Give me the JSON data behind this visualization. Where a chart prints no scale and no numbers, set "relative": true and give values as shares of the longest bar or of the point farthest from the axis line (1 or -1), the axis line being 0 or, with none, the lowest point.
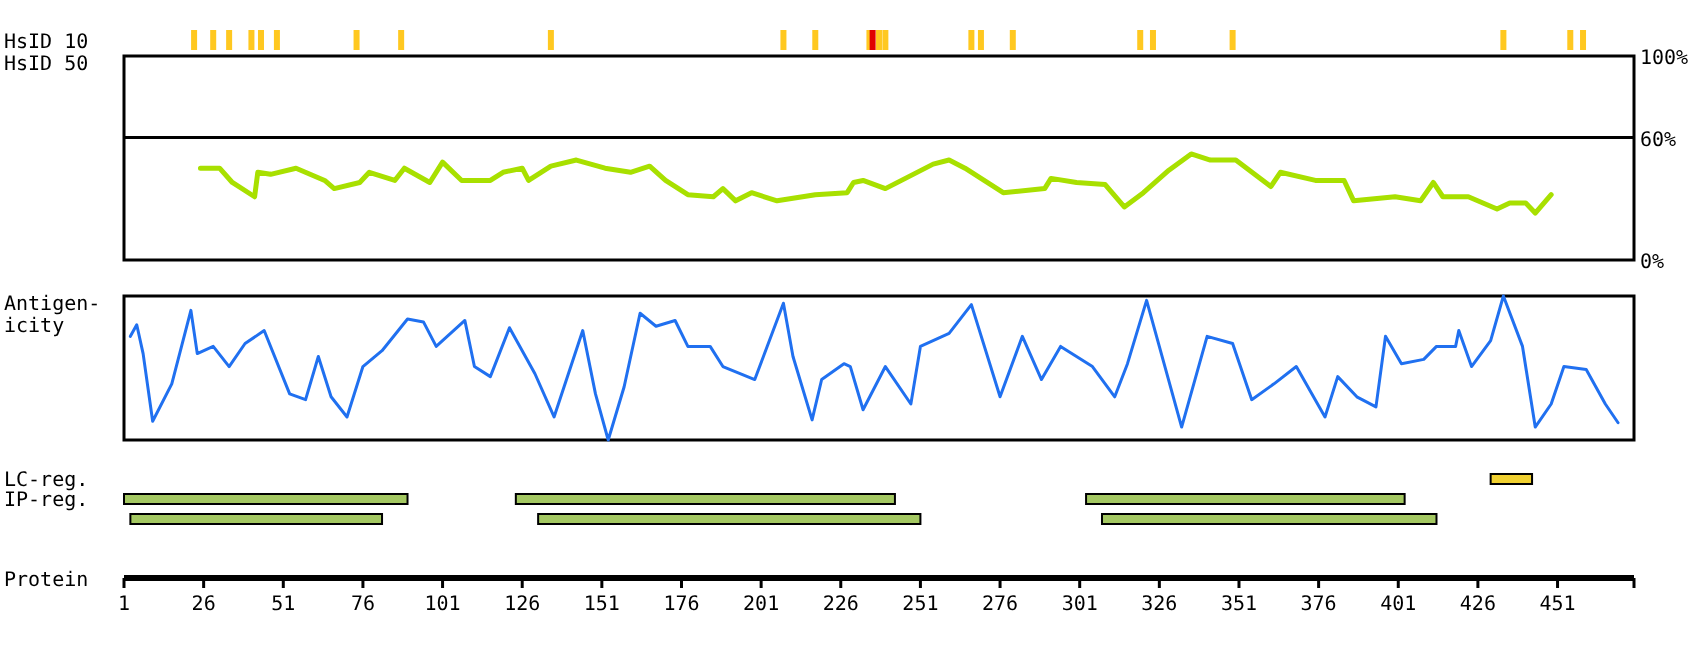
{
  "chart_data": [
    {
      "type": "bar",
      "ylabel": "HsID 10",
      "relative": true,
      "xlim": [
        1,
        475
      ],
      "tick_labels": false,
      "x": [
        23,
        29,
        34,
        41,
        44,
        49,
        74,
        88,
        135,
        208,
        218,
        235,
        236,
        238,
        240,
        267,
        270,
        280,
        320,
        324,
        349,
        434,
        455,
        459
      ],
      "values": [
        1,
        1,
        1,
        1,
        1,
        1,
        1,
        1,
        1,
        1,
        1,
        1,
        1,
        1,
        1,
        1,
        1,
        1,
        1,
        1,
        1,
        1,
        1,
        1
      ],
      "colors": [
        "#ffc820",
        "#ffc820",
        "#ffc820",
        "#ffc820",
        "#ffc820",
        "#ffc820",
        "#ffc820",
        "#ffc820",
        "#ffc820",
        "#ffc820",
        "#ffc820",
        "#ffc820",
        "#e00000",
        "#ffc820",
        "#ffc820",
        "#ffc820",
        "#ffc820",
        "#ffc820",
        "#ffc820",
        "#ffc820",
        "#ffc820",
        "#ffc820",
        "#ffc820",
        "#ffc820"
      ]
    },
    {
      "type": "line",
      "ylabel": "HsID 50",
      "xlim": [
        1,
        475
      ],
      "ylim": [
        0,
        100
      ],
      "tick_labels": "y",
      "yticks": [
        {
          "value": 0,
          "label": "0%"
        },
        {
          "value": 60,
          "label": "60%"
        },
        {
          "value": 100,
          "label": "100%"
        }
      ],
      "ref_lines": [
        {
          "axis": "y",
          "value": 60
        }
      ],
      "series": [
        {
          "color": "#a8e000",
          "x": [
            25,
            31,
            35,
            42,
            43,
            47,
            55,
            64,
            67,
            75,
            78,
            86,
            89,
            97,
            101,
            107,
            116,
            120,
            126,
            128,
            135,
            143,
            152,
            160,
            166,
            171,
            178,
            186,
            189,
            193,
            198,
            206,
            218,
            228,
            230,
            233,
            240,
            255,
            260,
            265,
            277,
            290,
            292,
            300,
            309,
            315,
            321,
            329,
            336,
            342,
            350,
            361,
            364,
            375,
            384,
            387,
            400,
            408,
            412,
            415,
            423,
            432,
            436,
            441,
            444,
            449
          ],
          "values": [
            45,
            45,
            38,
            31,
            43,
            42,
            45,
            39,
            35,
            38,
            43,
            39,
            45,
            38,
            48,
            39,
            39,
            43,
            45,
            39,
            46,
            49,
            45,
            43,
            46,
            39,
            32,
            31,
            35,
            29,
            33,
            29,
            32,
            33,
            38,
            39,
            35,
            47,
            49,
            45,
            33,
            35,
            40,
            38,
            37,
            26,
            33,
            44,
            52,
            49,
            49,
            36,
            43,
            39,
            39,
            29,
            31,
            29,
            38,
            31,
            31,
            25,
            28,
            28,
            23,
            32
          ]
        }
      ]
    },
    {
      "type": "line",
      "ylabel": "Antigen-\nicity",
      "relative": true,
      "xlim": [
        1,
        475
      ],
      "tick_labels": false,
      "series": [
        {
          "color": "#2070f0",
          "x": [
            3,
            5,
            7,
            10,
            16,
            22,
            24,
            29,
            34,
            39,
            45,
            53,
            58,
            62,
            66,
            71,
            76,
            82,
            90,
            95,
            99,
            108,
            111,
            116,
            122,
            130,
            136,
            145,
            149,
            153,
            158,
            163,
            168,
            174,
            178,
            185,
            189,
            199,
            208,
            211,
            217,
            220,
            227,
            229,
            233,
            240,
            248,
            251,
            260,
            267,
            276,
            283,
            289,
            295,
            305,
            312,
            316,
            322,
            333,
            341,
            349,
            355,
            362,
            369,
            378,
            382,
            388,
            394,
            397,
            402,
            409,
            413,
            419,
            420,
            424,
            430,
            434,
            440,
            444,
            449,
            453,
            460,
            466,
            470
          ],
          "values": [
            0.72,
            0.8,
            0.6,
            0.13,
            0.39,
            0.9,
            0.6,
            0.65,
            0.51,
            0.67,
            0.76,
            0.32,
            0.28,
            0.58,
            0.3,
            0.16,
            0.51,
            0.62,
            0.84,
            0.82,
            0.65,
            0.83,
            0.51,
            0.44,
            0.78,
            0.46,
            0.16,
            0.76,
            0.32,
            0,
            0.37,
            0.88,
            0.79,
            0.83,
            0.65,
            0.65,
            0.51,
            0.42,
            0.95,
            0.58,
            0.14,
            0.42,
            0.53,
            0.51,
            0.21,
            0.51,
            0.25,
            0.65,
            0.74,
            0.94,
            0.3,
            0.72,
            0.42,
            0.65,
            0.51,
            0.3,
            0.53,
            0.97,
            0.09,
            0.72,
            0.67,
            0.28,
            0.39,
            0.51,
            0.16,
            0.44,
            0.3,
            0.23,
            0.72,
            0.53,
            0.56,
            0.65,
            0.65,
            0.76,
            0.51,
            0.69,
            1,
            0.65,
            0.09,
            0.25,
            0.51,
            0.49,
            0.25,
            0.12
          ]
        }
      ]
    },
    {
      "type": "bar",
      "orientation": "horizontal",
      "categories": [
        "LC-reg.",
        "IP-reg.",
        null
      ],
      "xlim": [
        1,
        475
      ],
      "xticks": [
        1,
        26,
        51,
        76,
        101,
        126,
        151,
        176,
        201,
        226,
        251,
        276,
        301,
        326,
        351,
        376,
        401,
        426,
        451
      ],
      "xlabel": "Protein",
      "series": [
        {
          "values": [
            13,
            89,
            79
          ],
          "base": [
            430,
            1,
            3
          ],
          "colors": [
            "#f0d030",
            "#a4c862",
            "#a4c862"
          ]
        },
        {
          "values": [
            null,
            119,
            120
          ],
          "base": [
            null,
            124,
            131
          ],
          "colors": [
            null,
            "#a4c862",
            "#a4c862"
          ]
        },
        {
          "values": [
            null,
            100,
            105
          ],
          "base": [
            null,
            303,
            308
          ],
          "colors": [
            null,
            "#a4c862",
            "#a4c862"
          ]
        }
      ]
    }
  ]
}
